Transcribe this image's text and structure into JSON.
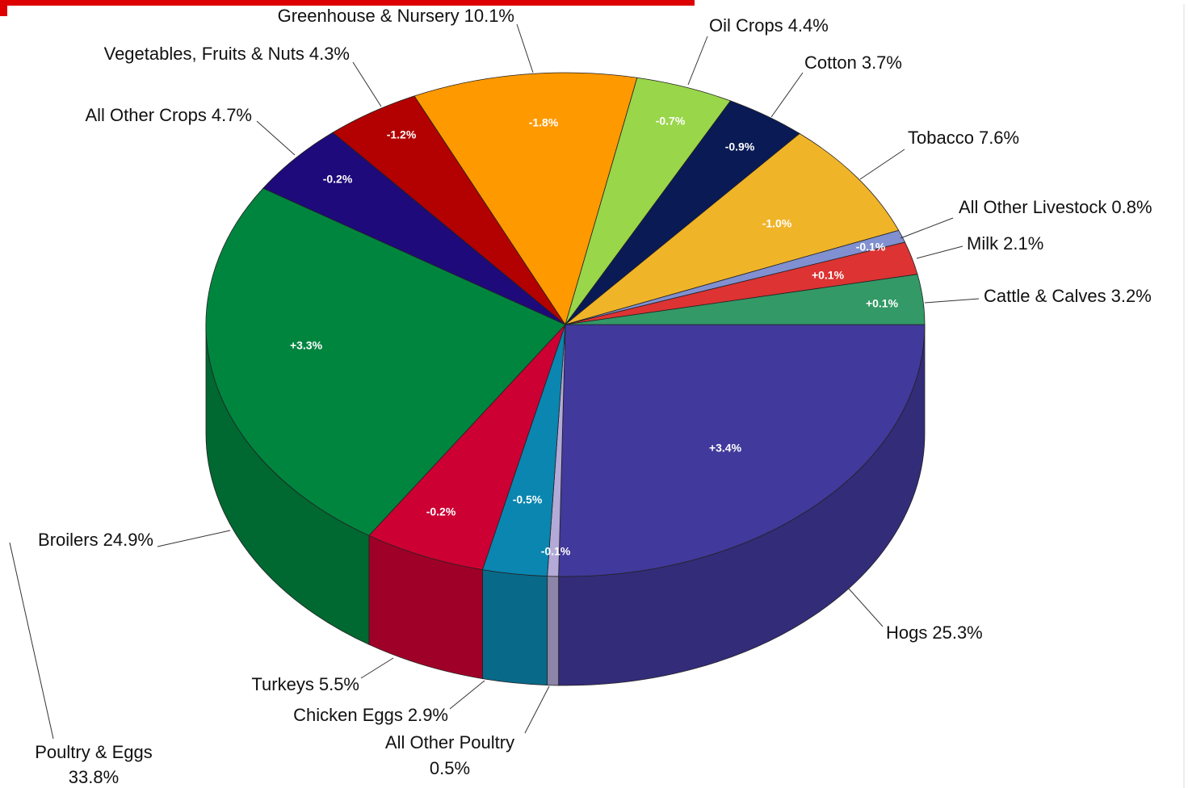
{
  "chart_data": {
    "type": "pie3d",
    "categories": [
      "Hogs",
      "All Other Poultry",
      "Chicken Eggs",
      "Turkeys",
      "Broilers",
      "All Other Crops",
      "Vegetables, Fruits & Nuts",
      "Greenhouse & Nursery",
      "Oil Crops",
      "Cotton",
      "Tobacco",
      "All Other Livestock",
      "Milk",
      "Cattle & Calves"
    ],
    "values": [
      25.3,
      0.5,
      2.9,
      5.5,
      24.9,
      4.7,
      4.3,
      10.1,
      4.4,
      3.7,
      7.6,
      0.8,
      2.1,
      3.2
    ],
    "value_labels": [
      "25.3%",
      "0.5%",
      "2.9%",
      "5.5%",
      "24.9%",
      "4.7%",
      "4.3%",
      "10.1%",
      "4.4%",
      "3.7%",
      "7.6%",
      "0.8%",
      "2.1%",
      "3.2%"
    ],
    "changes": [
      "+3.4%",
      "-0.1%",
      "-0.5%",
      "-0.2%",
      "+3.3%",
      "-0.2%",
      "-1.2%",
      "-1.8%",
      "-0.7%",
      "-0.9%",
      "-1.0%",
      "-0.1%",
      "+0.1%",
      "+0.1%"
    ],
    "colors": [
      "#41399b",
      "#b3aad8",
      "#0a86b0",
      "#cc0033",
      "#00853f",
      "#1e0a7a",
      "#b30000",
      "#ff9900",
      "#99d64a",
      "#0a1a55",
      "#f0b429",
      "#8090d0",
      "#dd3333",
      "#339966"
    ],
    "group_annotation": {
      "name": "Poultry & Eggs",
      "value_label": "33.8%"
    }
  }
}
